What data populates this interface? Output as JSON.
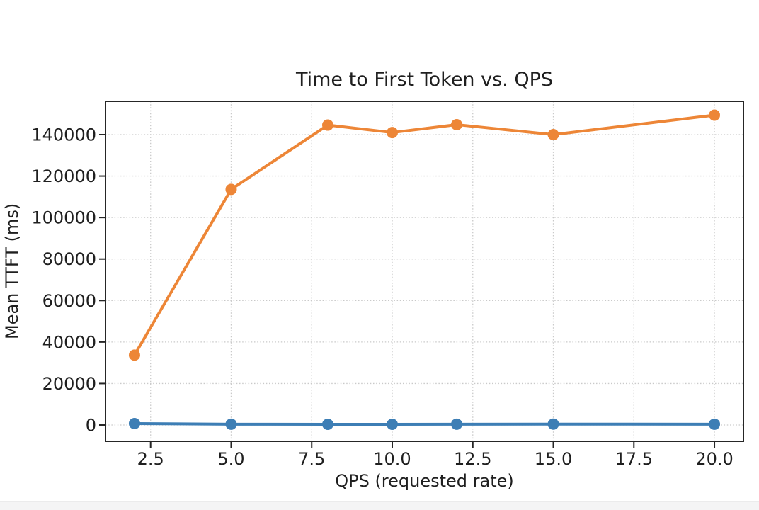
{
  "page": {
    "background": "#ffffff",
    "bottom_strip_color": "#f4f4f5"
  },
  "chart_data": {
    "type": "line",
    "title": "Time to First Token vs. QPS",
    "xlabel": "QPS (requested rate)",
    "ylabel": "Mean TTFT (ms)",
    "grid": true,
    "legend_position": "none",
    "x": [
      2,
      5,
      8,
      10,
      12,
      15,
      20
    ],
    "series": [
      {
        "name": "blue-series",
        "color": "#3d7eb5",
        "marker": "circle",
        "values": [
          700,
          400,
          350,
          350,
          400,
          450,
          400
        ]
      },
      {
        "name": "orange-series",
        "color": "#ed8637",
        "marker": "circle",
        "values": [
          33700,
          113600,
          144600,
          141000,
          144800,
          140000,
          149400
        ]
      }
    ],
    "x_tick_values": [
      2.5,
      5.0,
      7.5,
      10.0,
      12.5,
      15.0,
      17.5,
      20.0
    ],
    "x_tick_labels": [
      "2.5",
      "5.0",
      "7.5",
      "10.0",
      "12.5",
      "15.0",
      "17.5",
      "20.0"
    ],
    "y_tick_values": [
      0,
      20000,
      40000,
      60000,
      80000,
      100000,
      120000,
      140000
    ],
    "y_tick_labels": [
      "0",
      "20000",
      "40000",
      "60000",
      "80000",
      "100000",
      "120000",
      "140000"
    ],
    "xlim": [
      1.1,
      20.9
    ],
    "ylim": [
      -7850,
      156050
    ],
    "style": {
      "grid_color": "#c9c9c9",
      "spine_color": "#262626",
      "tick_color": "#262626",
      "line_width": 4,
      "marker_radius": 8
    }
  }
}
